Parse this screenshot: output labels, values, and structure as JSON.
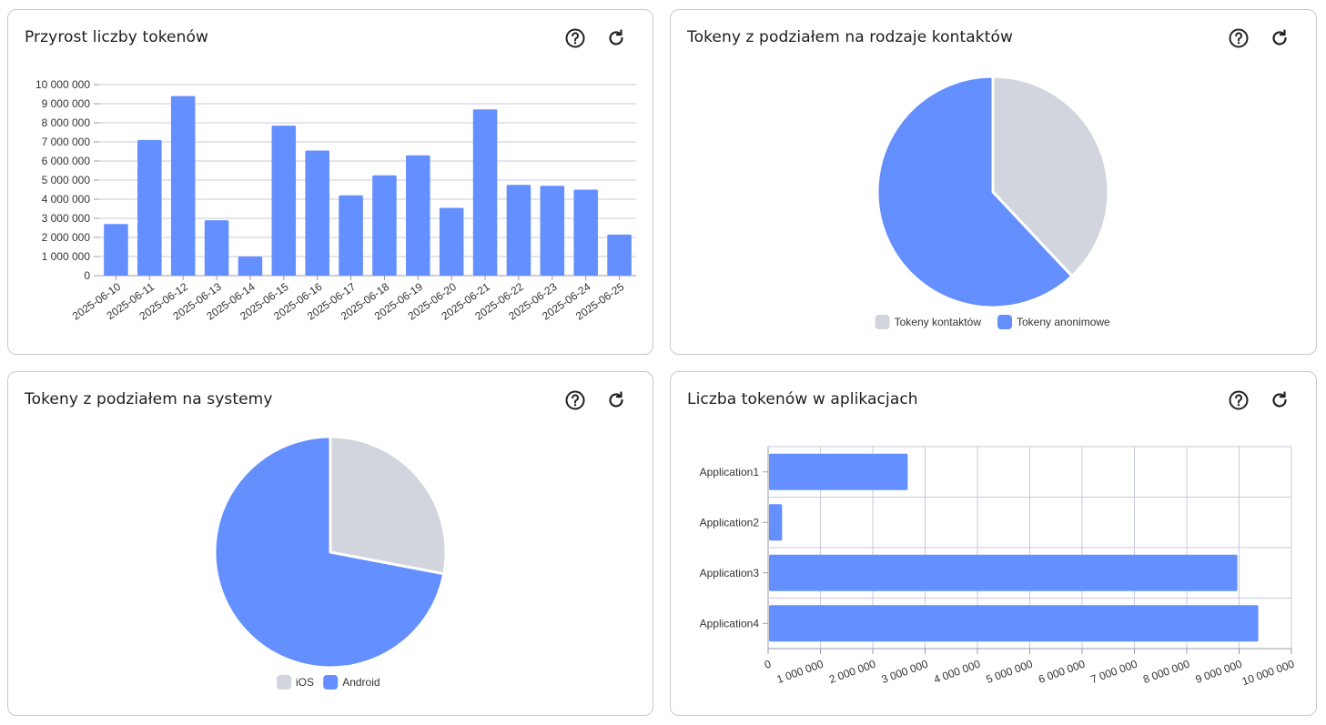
{
  "colors": {
    "primary": "#648ffe",
    "secondary": "#d3d5de",
    "grid": "#c8cade",
    "axis": "#999aa8"
  },
  "cards": [
    {
      "title": "Przyrost liczby tokenów",
      "help_icon": "help-circle-icon",
      "refresh_icon": "refresh-icon"
    },
    {
      "title": "Tokeny z podziałem na rodzaje kontaktów",
      "help_icon": "help-circle-icon",
      "refresh_icon": "refresh-icon"
    },
    {
      "title": "Tokeny z podziałem na systemy",
      "help_icon": "help-circle-icon",
      "refresh_icon": "refresh-icon"
    },
    {
      "title": "Liczba tokenów w aplikacjach",
      "help_icon": "help-circle-icon",
      "refresh_icon": "refresh-icon"
    }
  ],
  "chart_data": [
    {
      "type": "bar",
      "orientation": "vertical",
      "categories": [
        "2025-06-10",
        "2025-06-11",
        "2025-06-12",
        "2025-06-13",
        "2025-06-14",
        "2025-06-15",
        "2025-06-16",
        "2025-06-17",
        "2025-06-18",
        "2025-06-19",
        "2025-06-20",
        "2025-06-21",
        "2025-06-22",
        "2025-06-23",
        "2025-06-24",
        "2025-06-25"
      ],
      "values": [
        2700000,
        7100000,
        9400000,
        2900000,
        1000000,
        7850000,
        6550000,
        4200000,
        5250000,
        6300000,
        3550000,
        8700000,
        4750000,
        4700000,
        4500000,
        2150000
      ],
      "ylim": [
        0,
        10000000
      ],
      "yticks": [
        "0",
        "1 000 000",
        "2 000 000",
        "3 000 000",
        "4 000 000",
        "5 000 000",
        "6 000 000",
        "7 000 000",
        "8 000 000",
        "9 000 000",
        "10 000 000"
      ],
      "grid": true
    },
    {
      "type": "pie",
      "labels": [
        "Tokeny kontaktów",
        "Tokeny anonimowe"
      ],
      "values": [
        38,
        62
      ],
      "legend": "bottom"
    },
    {
      "type": "pie",
      "labels": [
        "iOS",
        "Android"
      ],
      "values": [
        28,
        72
      ],
      "legend": "bottom"
    },
    {
      "type": "bar",
      "orientation": "horizontal",
      "categories": [
        "Application1",
        "Application2",
        "Application3",
        "Application4"
      ],
      "values": [
        2650000,
        250000,
        8950000,
        9350000
      ],
      "xlim": [
        0,
        10000000
      ],
      "xticks": [
        "0",
        "1 000 000",
        "2 000 000",
        "3 000 000",
        "4 000 000",
        "5 000 000",
        "6 000 000",
        "7 000 000",
        "8 000 000",
        "9 000 000",
        "10 000 000"
      ],
      "grid": true
    }
  ]
}
